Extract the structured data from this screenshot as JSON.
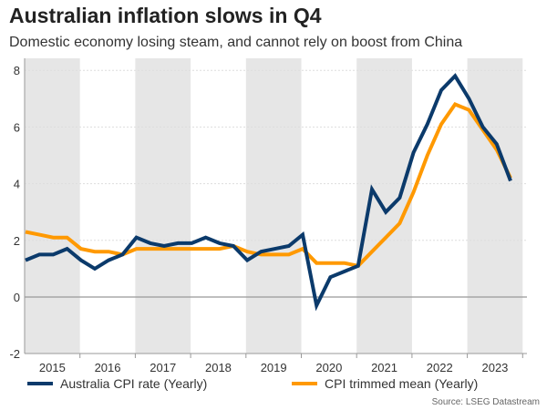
{
  "title": "Australian inflation slows in Q4",
  "subtitle": "Domestic economy losing steam, and cannot rely on boost from China",
  "source": "Source: LSEG Datastream",
  "chart_data": {
    "type": "line",
    "title": "Australian inflation slows in Q4",
    "xlabel": "",
    "ylabel": "",
    "ylim": [
      -2,
      8.5
    ],
    "yticks": [
      "-2",
      "0",
      "2",
      "4",
      "6",
      "8"
    ],
    "year_labels": [
      "2015",
      "2016",
      "2017",
      "2018",
      "2019",
      "2020",
      "2021",
      "2022",
      "2023"
    ],
    "shaded_years": [
      "2015",
      "2017",
      "2019",
      "2021",
      "2023"
    ],
    "grid": true,
    "legend": "bottom",
    "x": [
      "2015Q1",
      "2015Q2",
      "2015Q3",
      "2015Q4",
      "2016Q1",
      "2016Q2",
      "2016Q3",
      "2016Q4",
      "2017Q1",
      "2017Q2",
      "2017Q3",
      "2017Q4",
      "2018Q1",
      "2018Q2",
      "2018Q3",
      "2018Q4",
      "2019Q1",
      "2019Q2",
      "2019Q3",
      "2019Q4",
      "2020Q1",
      "2020Q2",
      "2020Q3",
      "2020Q4",
      "2021Q1",
      "2021Q2",
      "2021Q3",
      "2021Q4",
      "2022Q1",
      "2022Q2",
      "2022Q3",
      "2022Q4",
      "2023Q1",
      "2023Q2",
      "2023Q3",
      "2023Q4"
    ],
    "series": [
      {
        "name": "Australia CPI rate (Yearly)",
        "color": "#0b3a6b",
        "values": [
          1.3,
          1.5,
          1.5,
          1.7,
          1.3,
          1.0,
          1.3,
          1.5,
          2.1,
          1.9,
          1.8,
          1.9,
          1.9,
          2.1,
          1.9,
          1.8,
          1.3,
          1.6,
          1.7,
          1.8,
          2.2,
          -0.3,
          0.7,
          0.9,
          1.1,
          3.8,
          3.0,
          3.5,
          5.1,
          6.1,
          7.3,
          7.8,
          7.0,
          6.0,
          5.4,
          4.1
        ]
      },
      {
        "name": "CPI trimmed mean (Yearly)",
        "color": "#ff9900",
        "values": [
          2.3,
          2.2,
          2.1,
          2.1,
          1.7,
          1.6,
          1.6,
          1.5,
          1.7,
          1.7,
          1.7,
          1.7,
          1.7,
          1.7,
          1.7,
          1.8,
          1.6,
          1.5,
          1.5,
          1.5,
          1.7,
          1.2,
          1.2,
          1.2,
          1.1,
          1.6,
          2.1,
          2.6,
          3.7,
          5.0,
          6.1,
          6.8,
          6.6,
          5.9,
          5.2,
          4.2
        ]
      }
    ]
  }
}
